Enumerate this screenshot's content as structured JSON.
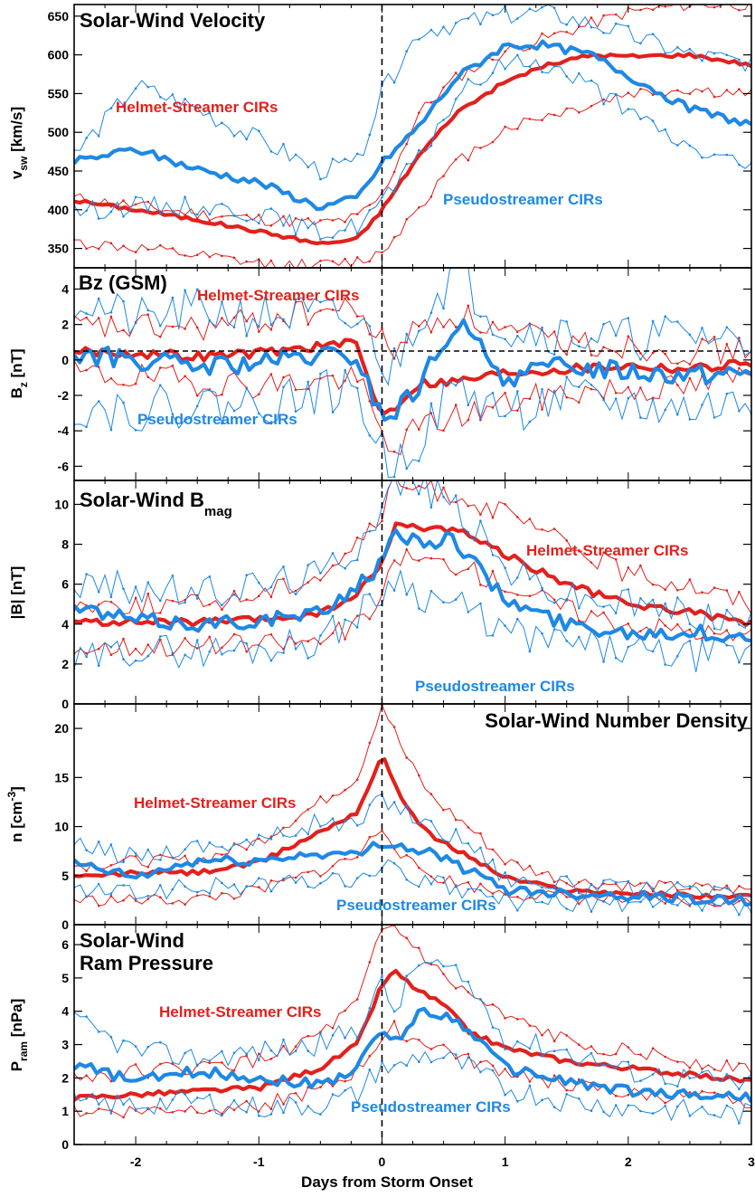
{
  "figure": {
    "xlabel": "Days from Storm Onset",
    "xticks": [
      "-2",
      "-1",
      "0",
      "1",
      "2",
      "3"
    ],
    "xlim": [
      -2.5,
      3
    ],
    "colors": {
      "helmet": "#e3201b",
      "pseudo": "#1e88e5",
      "axis": "#000000",
      "zero_line": "#000000"
    }
  },
  "chart_data": [
    {
      "type": "line",
      "title": "Solar-Wind Velocity",
      "ylabel": "v_sw [km/s]",
      "ylim": [
        325,
        665
      ],
      "yticks": [
        350,
        400,
        450,
        500,
        550,
        600,
        650
      ],
      "series": [
        {
          "name": "Helmet-Streamer CIRs",
          "x": [
            -2.5,
            -2,
            -1.5,
            -1,
            -0.5,
            -0.2,
            0,
            0.3,
            0.6,
            1,
            1.3,
            1.7,
            2,
            2.5,
            3
          ],
          "mean": [
            412,
            400,
            387,
            372,
            356,
            362,
            400,
            470,
            525,
            565,
            585,
            600,
            598,
            600,
            587
          ],
          "upper": [
            415,
            405,
            395,
            388,
            382,
            390,
            418,
            525,
            570,
            605,
            620,
            640,
            655,
            665,
            665
          ],
          "lower": [
            358,
            350,
            340,
            330,
            328,
            333,
            345,
            405,
            460,
            505,
            520,
            535,
            550,
            555,
            548
          ]
        },
        {
          "name": "Pseudostreamer CIRs",
          "x": [
            -2.5,
            -2,
            -1.5,
            -1,
            -0.5,
            -0.2,
            0,
            0.3,
            0.6,
            1,
            1.3,
            1.7,
            2,
            2.5,
            3
          ],
          "mean": [
            462,
            478,
            452,
            435,
            403,
            415,
            460,
            508,
            570,
            612,
            613,
            600,
            573,
            530,
            510
          ],
          "upper": [
            470,
            560,
            530,
            490,
            450,
            460,
            550,
            630,
            640,
            650,
            655,
            640,
            625,
            600,
            590
          ],
          "lower": [
            398,
            405,
            405,
            395,
            370,
            380,
            410,
            465,
            545,
            590,
            590,
            560,
            525,
            480,
            455
          ]
        }
      ],
      "annotations": [
        "Pseudostreamer CIRs",
        "Helmet-Streamer CIRs"
      ]
    },
    {
      "type": "line",
      "title": "Bz (GSM)",
      "ylabel": "B_z [nT]",
      "ylim": [
        -6.8,
        5.2
      ],
      "yticks": [
        -6,
        -4,
        -2,
        0,
        2,
        4
      ],
      "reference_line": 0.5,
      "series": [
        {
          "name": "Helmet-Streamer CIRs",
          "x": [
            -2.5,
            -2,
            -1.5,
            -1,
            -0.5,
            -0.2,
            -0.05,
            0.05,
            0.3,
            0.6,
            1,
            1.5,
            2,
            2.5,
            3
          ],
          "mean": [
            0.5,
            0.4,
            0.2,
            0.4,
            0.8,
            0.9,
            -2.5,
            -3,
            -1.3,
            -1.2,
            -0.7,
            -0.5,
            -0.3,
            -0.5,
            -0.1
          ],
          "upper": [
            1.8,
            1.8,
            1.8,
            2.2,
            2.8,
            2.8,
            1.5,
            0.5,
            1.8,
            2.6,
            1.5,
            1.0,
            0.8,
            0.5,
            0.5
          ],
          "lower": [
            -0.8,
            -1.0,
            -1.2,
            -1.4,
            -1.2,
            -1.0,
            -3.5,
            -5.2,
            -3.8,
            -3.2,
            -2.5,
            -1.8,
            -1.6,
            -1.6,
            -0.8
          ]
        },
        {
          "name": "Pseudostreamer CIRs",
          "x": [
            -2.5,
            -2,
            -1.5,
            -1,
            -0.5,
            -0.2,
            -0.05,
            0.05,
            0.3,
            0.6,
            1,
            1.5,
            2,
            2.5,
            3
          ],
          "mean": [
            0.3,
            0.0,
            -0.4,
            -0.2,
            0.2,
            0.1,
            -2.5,
            -3.4,
            -1.5,
            2.2,
            -1.0,
            -0.3,
            -0.6,
            -0.8,
            -0.7
          ],
          "upper": [
            3.5,
            2.2,
            2.8,
            2.5,
            2.5,
            2.0,
            1.0,
            -1.0,
            2.5,
            5.0,
            1.8,
            1.5,
            1.2,
            1.5,
            1.0
          ],
          "lower": [
            -2.6,
            -2.8,
            -2.5,
            -2.5,
            -1.8,
            -1.8,
            -4.5,
            -6.0,
            -4.5,
            -1.5,
            -3.0,
            -2.2,
            -2.6,
            -2.8,
            -2.4
          ]
        }
      ],
      "annotations": [
        "Helmet-Streamer CIRs",
        "Pseudostreamer CIRs"
      ]
    },
    {
      "type": "line",
      "title": "Solar-Wind B_mag",
      "ylabel": "|B| [nT]",
      "ylim": [
        0,
        11.2
      ],
      "yticks": [
        0,
        2,
        4,
        6,
        8,
        10
      ],
      "series": [
        {
          "name": "Helmet-Streamer CIRs",
          "x": [
            -2.5,
            -2,
            -1.5,
            -1,
            -0.5,
            -0.2,
            0,
            0.1,
            0.3,
            0.6,
            1,
            1.5,
            2,
            2.5,
            3
          ],
          "mean": [
            4.1,
            4.1,
            4.1,
            4.2,
            4.5,
            5.5,
            7.0,
            9.0,
            8.8,
            8.8,
            7.5,
            6.0,
            5.0,
            4.6,
            4.0
          ],
          "upper": [
            5.0,
            5.0,
            5.0,
            5.5,
            6.5,
            8.0,
            9.5,
            11.0,
            10.8,
            10.5,
            9.5,
            8.0,
            6.5,
            6.0,
            5.0
          ],
          "lower": [
            2.8,
            2.9,
            2.9,
            3.0,
            3.2,
            4.0,
            5.0,
            7.5,
            7.2,
            7.0,
            6.0,
            4.8,
            4.0,
            3.7,
            3.2
          ]
        },
        {
          "name": "Pseudostreamer CIRs",
          "x": [
            -2.5,
            -2,
            -1.5,
            -1,
            -0.5,
            -0.2,
            0,
            0.1,
            0.3,
            0.6,
            1,
            1.5,
            2,
            2.5,
            3
          ],
          "mean": [
            4.8,
            4.2,
            4.0,
            4.2,
            4.5,
            6.0,
            7.0,
            8.5,
            8.2,
            8.2,
            5.2,
            4.0,
            3.6,
            3.6,
            3.3
          ],
          "upper": [
            6.0,
            5.8,
            5.5,
            6.0,
            6.5,
            8.0,
            10.0,
            11.0,
            11.0,
            10.0,
            6.8,
            5.4,
            5.0,
            4.6,
            4.0
          ],
          "lower": [
            2.0,
            2.8,
            2.6,
            2.8,
            3.2,
            4.5,
            5.5,
            6.5,
            5.5,
            5.0,
            3.6,
            3.0,
            2.6,
            2.4,
            2.5
          ]
        }
      ],
      "annotations": [
        "Helmet-Streamer CIRs",
        "Pseudostreamer CIRs"
      ]
    },
    {
      "type": "line",
      "title": "Solar-Wind Number Density",
      "ylabel": "n [cm^-3]",
      "ylim": [
        0,
        22.5
      ],
      "yticks": [
        0,
        5,
        10,
        15,
        20
      ],
      "series": [
        {
          "name": "Helmet-Streamer CIRs",
          "x": [
            -2.5,
            -2,
            -1.5,
            -1,
            -0.5,
            -0.2,
            0,
            0.2,
            0.4,
            0.7,
            1,
            1.5,
            2,
            2.5,
            3
          ],
          "mean": [
            4.8,
            5.3,
            5.3,
            6.3,
            9.5,
            11.5,
            17.2,
            12.0,
            9.0,
            7.0,
            4.8,
            3.5,
            3.2,
            3.0,
            2.8
          ],
          "upper": [
            6.0,
            6.5,
            6.5,
            8.5,
            12.5,
            15.0,
            22.5,
            17.0,
            13.0,
            10.0,
            6.5,
            4.5,
            4.0,
            3.8,
            3.5
          ],
          "lower": [
            2.5,
            2.5,
            2.6,
            3.5,
            5.5,
            7.0,
            10.0,
            6.5,
            5.0,
            4.0,
            3.2,
            2.8,
            2.5,
            2.3,
            2.2
          ]
        },
        {
          "name": "Pseudostreamer CIRs",
          "x": [
            -2.5,
            -2,
            -1.5,
            -1,
            -0.5,
            -0.2,
            0,
            0.2,
            0.4,
            0.7,
            1,
            1.5,
            2,
            2.5,
            3
          ],
          "mean": [
            6.2,
            4.8,
            6.5,
            6.5,
            7.3,
            7.0,
            8.5,
            7.8,
            7.4,
            5.5,
            3.6,
            3.2,
            3.0,
            2.7,
            2.4
          ],
          "upper": [
            8.0,
            7.0,
            8.0,
            8.5,
            10.5,
            10.0,
            13.0,
            11.5,
            10.0,
            8.5,
            4.8,
            4.0,
            3.6,
            3.3,
            3.0
          ],
          "lower": [
            3.5,
            3.2,
            3.8,
            4.0,
            4.5,
            4.5,
            6.0,
            5.0,
            4.2,
            3.2,
            2.5,
            2.2,
            2.0,
            1.8,
            1.6
          ]
        }
      ],
      "annotations": [
        "Helmet-Streamer CIRs",
        "Pseudostreamer CIRs"
      ]
    },
    {
      "type": "line",
      "title": "Solar-Wind Ram Pressure",
      "ylabel": "P_ram [nPa]",
      "ylim": [
        0,
        6.6
      ],
      "yticks": [
        0,
        1,
        2,
        3,
        4,
        5,
        6
      ],
      "series": [
        {
          "name": "Helmet-Streamer CIRs",
          "x": [
            -2.5,
            -2,
            -1.5,
            -1,
            -0.5,
            -0.2,
            0,
            0.1,
            0.3,
            0.5,
            0.7,
            1,
            1.5,
            2,
            2.5,
            3
          ],
          "mean": [
            1.4,
            1.5,
            1.6,
            1.7,
            2.3,
            3.0,
            4.8,
            5.2,
            4.6,
            4.2,
            3.4,
            2.9,
            2.5,
            2.3,
            2.1,
            1.9
          ],
          "upper": [
            2.0,
            2.2,
            2.3,
            2.5,
            3.3,
            4.2,
            6.4,
            6.5,
            5.8,
            5.0,
            4.5,
            3.8,
            3.1,
            2.8,
            2.5,
            2.3
          ],
          "lower": [
            1.0,
            1.0,
            1.1,
            1.2,
            1.6,
            2.2,
            3.2,
            3.5,
            3.1,
            2.9,
            2.5,
            2.2,
            1.8,
            1.5,
            1.4,
            1.3
          ]
        },
        {
          "name": "Pseudostreamer CIRs",
          "x": [
            -2.5,
            -2,
            -1.5,
            -1,
            -0.5,
            -0.2,
            0,
            0.1,
            0.3,
            0.5,
            0.7,
            1,
            1.5,
            2,
            2.5,
            3
          ],
          "mean": [
            2.4,
            1.9,
            2.2,
            2.0,
            1.8,
            2.3,
            3.5,
            3.0,
            4.0,
            3.9,
            3.5,
            2.3,
            1.9,
            1.6,
            1.5,
            1.4
          ],
          "upper": [
            3.7,
            2.8,
            2.6,
            2.8,
            3.0,
            3.5,
            4.8,
            4.0,
            5.5,
            5.3,
            4.8,
            3.2,
            2.8,
            2.2,
            2.0,
            1.8
          ],
          "lower": [
            1.2,
            1.2,
            1.3,
            1.1,
            1.2,
            1.5,
            2.4,
            2.2,
            2.7,
            2.6,
            2.3,
            1.7,
            1.3,
            1.1,
            1.0,
            0.9
          ]
        }
      ],
      "annotations": [
        "Helmet-Streamer CIRs",
        "Pseudostreamer CIRs"
      ]
    }
  ]
}
